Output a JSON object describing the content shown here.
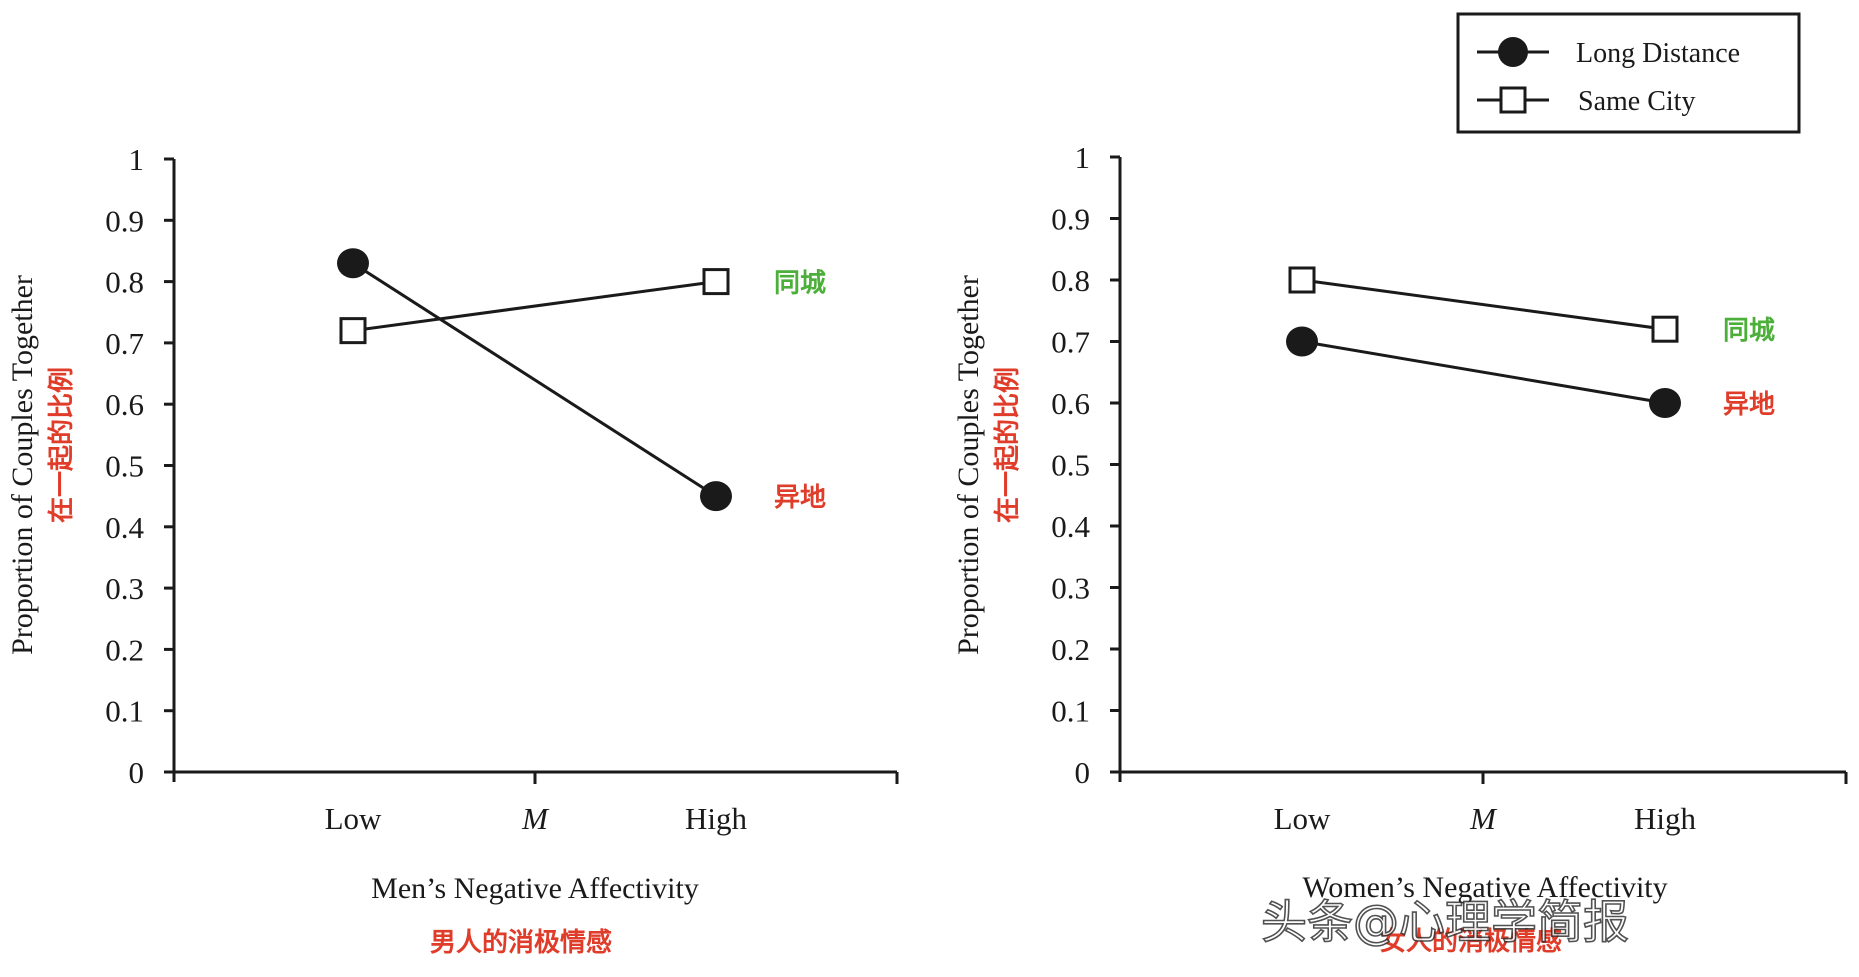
{
  "legend": {
    "items": [
      {
        "label": "Long Distance",
        "marker": "filled-circle"
      },
      {
        "label": "Same City",
        "marker": "open-square"
      }
    ]
  },
  "colors": {
    "axis": "#1a1a1a",
    "annotation_green": "#4caf3a",
    "annotation_red": "#e03c2a",
    "watermark": "#333333"
  },
  "watermark": "头条@心理学简报",
  "chart_data": [
    {
      "type": "line",
      "title": "",
      "xlabel": "Men’s Negative Affectivity",
      "xlabel_cn": "男人的消极情感",
      "ylabel": "Proportion of Couples Together",
      "ylabel_cn": "在一起的比例",
      "categories": [
        "Low",
        "M",
        "High"
      ],
      "ylim": [
        0,
        1
      ],
      "yticks": [
        "0",
        "0.1",
        "0.2",
        "0.3",
        "0.4",
        "0.5",
        "0.6",
        "0.7",
        "0.8",
        "0.9",
        "1"
      ],
      "grid": false,
      "series": [
        {
          "name": "Long Distance",
          "marker": "filled-circle",
          "x": [
            "Low",
            "High"
          ],
          "values": [
            0.83,
            0.45
          ],
          "annotation": "异地",
          "annotation_color": "red"
        },
        {
          "name": "Same City",
          "marker": "open-square",
          "x": [
            "Low",
            "High"
          ],
          "values": [
            0.72,
            0.8
          ],
          "annotation": "同城",
          "annotation_color": "green"
        }
      ]
    },
    {
      "type": "line",
      "title": "",
      "xlabel": "Women’s Negative Affectivity",
      "xlabel_cn": "女人的消极情感",
      "ylabel": "Proportion of Couples Together",
      "ylabel_cn": "在一起的比例",
      "categories": [
        "Low",
        "M",
        "High"
      ],
      "ylim": [
        0,
        1
      ],
      "yticks": [
        "0",
        "0.1",
        "0.2",
        "0.3",
        "0.4",
        "0.5",
        "0.6",
        "0.7",
        "0.8",
        "0.9",
        "1"
      ],
      "grid": false,
      "legend": "top-right",
      "series": [
        {
          "name": "Long Distance",
          "marker": "filled-circle",
          "x": [
            "Low",
            "High"
          ],
          "values": [
            0.7,
            0.6
          ],
          "annotation": "异地",
          "annotation_color": "red"
        },
        {
          "name": "Same City",
          "marker": "open-square",
          "x": [
            "Low",
            "High"
          ],
          "values": [
            0.8,
            0.72
          ],
          "annotation": "同城",
          "annotation_color": "green"
        }
      ]
    }
  ]
}
